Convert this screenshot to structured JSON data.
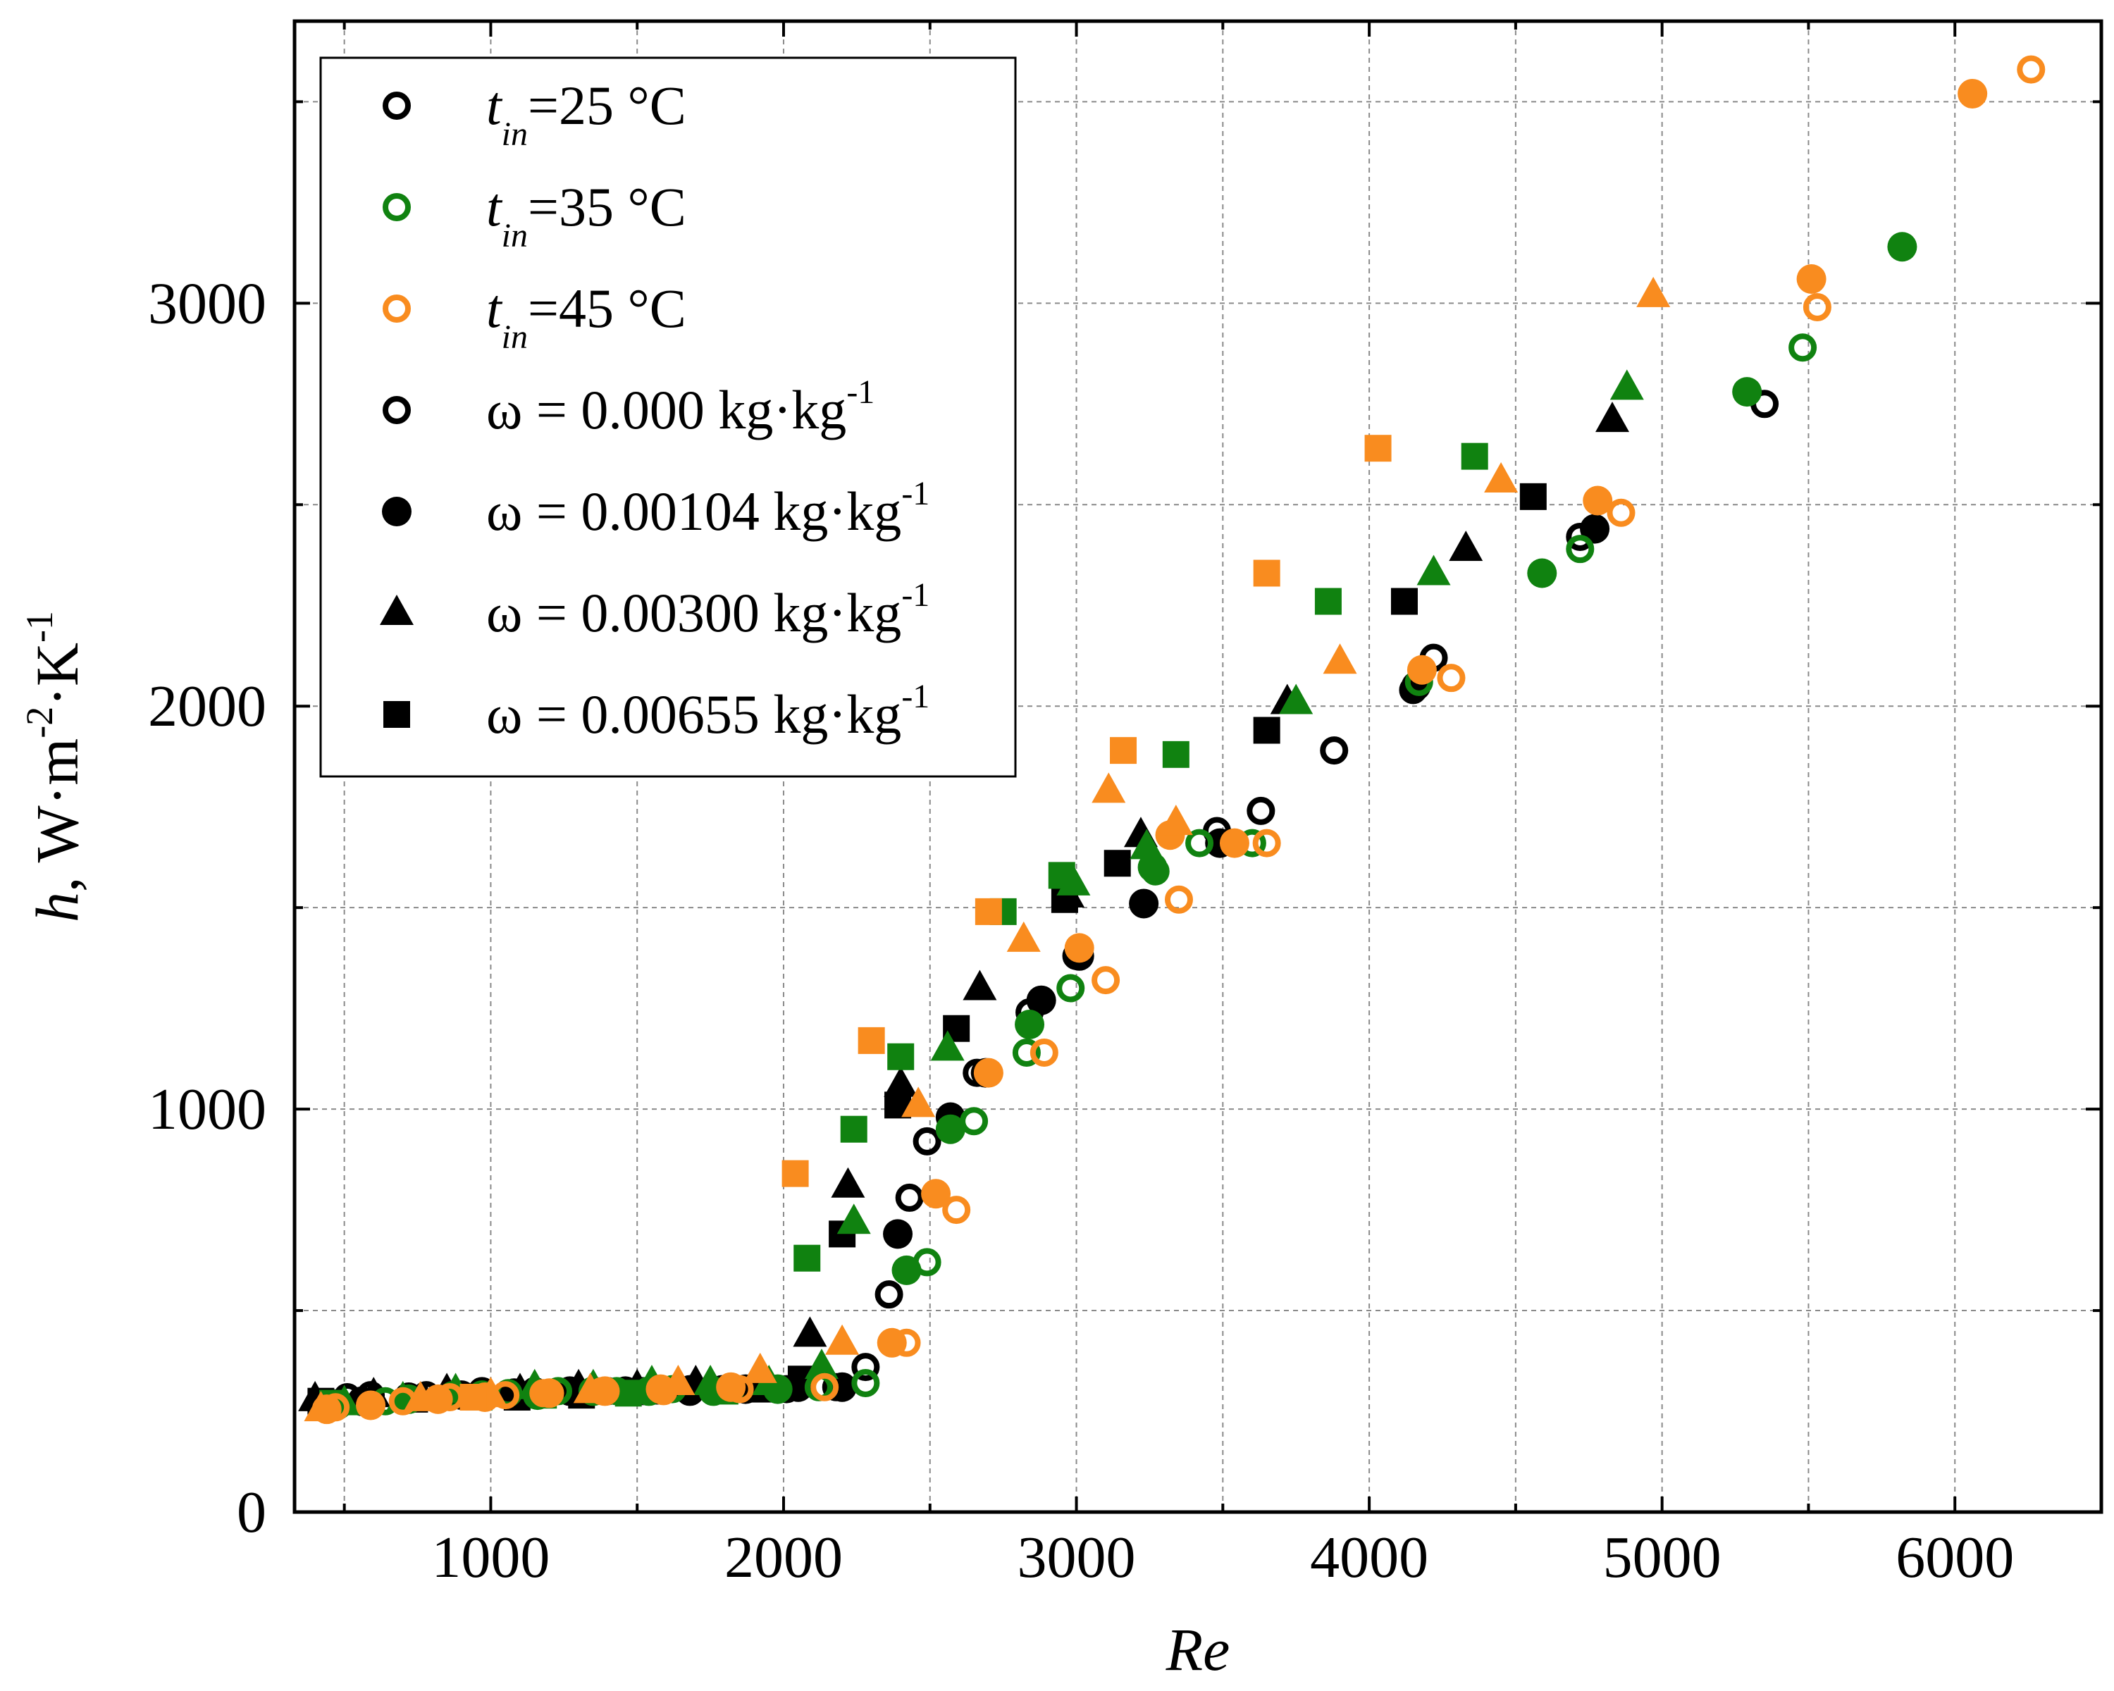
{
  "chart_data": {
    "type": "scatter",
    "title": "",
    "xlabel": "Re",
    "ylabel": "h, W·m-2·K-1",
    "ylabel_parts": {
      "var": "h",
      "unit": ", W·m",
      "exp1": "-2",
      "mid": "·K",
      "exp2": "-1"
    },
    "xlim": [
      330,
      6500
    ],
    "ylim": [
      0,
      3700
    ],
    "xticks": [
      1000,
      2000,
      3000,
      4000,
      5000,
      6000
    ],
    "yticks": [
      0,
      1000,
      2000,
      3000
    ],
    "xtick_labels": [
      "1000",
      "2000",
      "3000",
      "4000",
      "5000",
      "6000"
    ],
    "ytick_labels": [
      "0",
      "1000",
      "2000",
      "3000"
    ],
    "x_minor_step": 500,
    "y_minor_step": 500,
    "grid": true,
    "legend_position": "top-left",
    "colors": {
      "t25": "#000000",
      "t35": "#108210",
      "t45": "#f98c1f"
    },
    "legend": [
      {
        "kind": "temp",
        "color": "t25",
        "marker": "open-circle",
        "prefix": "t",
        "sub": "in",
        "text": "=25 °C"
      },
      {
        "kind": "temp",
        "color": "t35",
        "marker": "open-circle",
        "prefix": "t",
        "sub": "in",
        "text": "=35 °C"
      },
      {
        "kind": "temp",
        "color": "t45",
        "marker": "open-circle",
        "prefix": "t",
        "sub": "in",
        "text": "=45 °C"
      },
      {
        "kind": "omega",
        "color": "t25",
        "marker": "open-circle",
        "text": "ω = 0.000 kg·kg",
        "sup": "-1"
      },
      {
        "kind": "omega",
        "color": "t25",
        "marker": "circle",
        "text": "ω = 0.00104 kg·kg",
        "sup": "-1"
      },
      {
        "kind": "omega",
        "color": "t25",
        "marker": "triangle",
        "text": "ω = 0.00300 kg·kg",
        "sup": "-1"
      },
      {
        "kind": "omega",
        "color": "t25",
        "marker": "square",
        "text": "ω = 0.00655 kg·kg",
        "sup": "-1"
      }
    ],
    "series": [
      {
        "name": "t_in=25 °C, ω=0.000",
        "color": "t25",
        "marker": "open-circle",
        "points": [
          [
            430,
            270
          ],
          [
            510,
            285
          ],
          [
            590,
            290
          ],
          [
            780,
            290
          ],
          [
            970,
            300
          ],
          [
            1150,
            300
          ],
          [
            1400,
            300
          ],
          [
            1520,
            300
          ],
          [
            1680,
            305
          ],
          [
            1790,
            305
          ],
          [
            2010,
            305
          ],
          [
            2180,
            310
          ],
          [
            2280,
            360
          ],
          [
            2360,
            540
          ],
          [
            2430,
            780
          ],
          [
            2490,
            920
          ],
          [
            2660,
            1090
          ],
          [
            2840,
            1240
          ],
          [
            3000,
            1380
          ],
          [
            3480,
            1690
          ],
          [
            3630,
            1740
          ],
          [
            3880,
            1890
          ],
          [
            4150,
            2040
          ],
          [
            4220,
            2120
          ],
          [
            4720,
            2420
          ],
          [
            5350,
            2750
          ]
        ]
      },
      {
        "name": "t_in=25 °C, ω=0.00104",
        "color": "t25",
        "marker": "circle",
        "points": [
          [
            450,
            270
          ],
          [
            560,
            275
          ],
          [
            720,
            285
          ],
          [
            900,
            290
          ],
          [
            1080,
            295
          ],
          [
            1270,
            300
          ],
          [
            1460,
            300
          ],
          [
            1680,
            300
          ],
          [
            1870,
            305
          ],
          [
            2050,
            310
          ],
          [
            2200,
            310
          ],
          [
            2390,
            690
          ],
          [
            2570,
            980
          ],
          [
            2690,
            1090
          ],
          [
            2880,
            1270
          ],
          [
            3010,
            1380
          ],
          [
            3230,
            1510
          ],
          [
            3490,
            1660
          ],
          [
            4160,
            2050
          ],
          [
            4770,
            2440
          ]
        ]
      },
      {
        "name": "t_in=25 °C, ω=0.00300",
        "color": "t25",
        "marker": "triangle",
        "points": [
          [
            400,
            280
          ],
          [
            600,
            290
          ],
          [
            850,
            300
          ],
          [
            1100,
            300
          ],
          [
            1300,
            310
          ],
          [
            1500,
            310
          ],
          [
            1700,
            320
          ],
          [
            1900,
            320
          ],
          [
            2090,
            440
          ],
          [
            2220,
            810
          ],
          [
            2400,
            1060
          ],
          [
            2670,
            1300
          ],
          [
            2970,
            1530
          ],
          [
            3220,
            1680
          ],
          [
            3720,
            2010
          ],
          [
            4330,
            2390
          ],
          [
            4830,
            2710
          ]
        ]
      },
      {
        "name": "t_in=25 °C, ω=0.00655",
        "color": "t25",
        "marker": "square",
        "points": [
          [
            420,
            275
          ],
          [
            740,
            280
          ],
          [
            1090,
            285
          ],
          [
            1310,
            290
          ],
          [
            1550,
            300
          ],
          [
            1920,
            305
          ],
          [
            2060,
            330
          ],
          [
            2200,
            690
          ],
          [
            2390,
            1010
          ],
          [
            2590,
            1200
          ],
          [
            2960,
            1520
          ],
          [
            3140,
            1610
          ],
          [
            3650,
            1940
          ],
          [
            4120,
            2260
          ],
          [
            4560,
            2520
          ]
        ]
      },
      {
        "name": "t_in=35 °C, ω=0.000",
        "color": "t35",
        "marker": "open-circle",
        "points": [
          [
            480,
            265
          ],
          [
            640,
            275
          ],
          [
            870,
            290
          ],
          [
            1060,
            295
          ],
          [
            1230,
            300
          ],
          [
            1430,
            300
          ],
          [
            1620,
            305
          ],
          [
            1820,
            305
          ],
          [
            2120,
            310
          ],
          [
            2280,
            320
          ],
          [
            2490,
            620
          ],
          [
            2650,
            970
          ],
          [
            2830,
            1140
          ],
          [
            2980,
            1300
          ],
          [
            3270,
            1590
          ],
          [
            3420,
            1660
          ],
          [
            3600,
            1660
          ],
          [
            4170,
            2060
          ],
          [
            4720,
            2390
          ],
          [
            5480,
            2890
          ]
        ]
      },
      {
        "name": "t_in=35 °C, ω=0.00104",
        "color": "t35",
        "marker": "circle",
        "points": [
          [
            470,
            265
          ],
          [
            720,
            280
          ],
          [
            970,
            290
          ],
          [
            1160,
            290
          ],
          [
            1350,
            300
          ],
          [
            1540,
            300
          ],
          [
            1760,
            300
          ],
          [
            1980,
            305
          ],
          [
            2420,
            600
          ],
          [
            2570,
            950
          ],
          [
            2840,
            1210
          ],
          [
            3260,
            1600
          ],
          [
            4590,
            2330
          ],
          [
            5290,
            2780
          ],
          [
            5820,
            3140
          ]
        ]
      },
      {
        "name": "t_in=35 °C, ω=0.00300",
        "color": "t35",
        "marker": "triangle",
        "points": [
          [
            500,
            270
          ],
          [
            700,
            280
          ],
          [
            880,
            300
          ],
          [
            1150,
            310
          ],
          [
            1350,
            310
          ],
          [
            1550,
            320
          ],
          [
            1750,
            320
          ],
          [
            1950,
            320
          ],
          [
            2130,
            360
          ],
          [
            2240,
            720
          ],
          [
            2560,
            1150
          ],
          [
            2990,
            1560
          ],
          [
            3240,
            1650
          ],
          [
            3750,
            2010
          ],
          [
            4220,
            2330
          ],
          [
            4880,
            2790
          ]
        ]
      },
      {
        "name": "t_in=35 °C, ω=0.00655",
        "color": "t35",
        "marker": "square",
        "points": [
          [
            460,
            270
          ],
          [
            960,
            285
          ],
          [
            1180,
            290
          ],
          [
            1470,
            295
          ],
          [
            1800,
            300
          ],
          [
            2080,
            630
          ],
          [
            2240,
            950
          ],
          [
            2400,
            1130
          ],
          [
            2750,
            1490
          ],
          [
            2950,
            1580
          ],
          [
            3340,
            1880
          ],
          [
            3860,
            2260
          ],
          [
            4360,
            2620
          ]
        ]
      },
      {
        "name": "t_in=45 °C, ω=0.000",
        "color": "t45",
        "marker": "open-circle",
        "points": [
          [
            470,
            260
          ],
          [
            700,
            275
          ],
          [
            860,
            285
          ],
          [
            1050,
            290
          ],
          [
            1180,
            295
          ],
          [
            1380,
            300
          ],
          [
            1590,
            300
          ],
          [
            1850,
            305
          ],
          [
            2140,
            310
          ],
          [
            2420,
            420
          ],
          [
            2590,
            750
          ],
          [
            2890,
            1140
          ],
          [
            3100,
            1320
          ],
          [
            3350,
            1520
          ],
          [
            3650,
            1660
          ],
          [
            4280,
            2070
          ],
          [
            4860,
            2480
          ],
          [
            5530,
            2990
          ],
          [
            6260,
            3580
          ]
        ]
      },
      {
        "name": "t_in=45 °C, ω=0.00104",
        "color": "t45",
        "marker": "circle",
        "points": [
          [
            440,
            255
          ],
          [
            590,
            265
          ],
          [
            820,
            280
          ],
          [
            980,
            285
          ],
          [
            1200,
            295
          ],
          [
            1390,
            300
          ],
          [
            1580,
            305
          ],
          [
            1820,
            310
          ],
          [
            2370,
            420
          ],
          [
            2520,
            790
          ],
          [
            2700,
            1090
          ],
          [
            3010,
            1400
          ],
          [
            3320,
            1680
          ],
          [
            3540,
            1660
          ],
          [
            4180,
            2090
          ],
          [
            4780,
            2510
          ],
          [
            5510,
            3060
          ],
          [
            6060,
            3520
          ]
        ]
      },
      {
        "name": "t_in=45 °C, ω=0.00300",
        "color": "t45",
        "marker": "triangle",
        "points": [
          [
            420,
            255
          ],
          [
            760,
            280
          ],
          [
            1000,
            290
          ],
          [
            1340,
            300
          ],
          [
            1640,
            320
          ],
          [
            1920,
            350
          ],
          [
            2200,
            420
          ],
          [
            2460,
            1010
          ],
          [
            2820,
            1420
          ],
          [
            3110,
            1790
          ],
          [
            3340,
            1710
          ],
          [
            3900,
            2110
          ],
          [
            4450,
            2560
          ],
          [
            4970,
            3020
          ]
        ]
      },
      {
        "name": "t_in=45 °C, ω=0.00655",
        "color": "t45",
        "marker": "square",
        "points": [
          [
            940,
            285
          ],
          [
            2040,
            840
          ],
          [
            2300,
            1170
          ],
          [
            2700,
            1490
          ],
          [
            3160,
            1890
          ],
          [
            3650,
            2330
          ],
          [
            4030,
            2640
          ]
        ]
      }
    ]
  }
}
